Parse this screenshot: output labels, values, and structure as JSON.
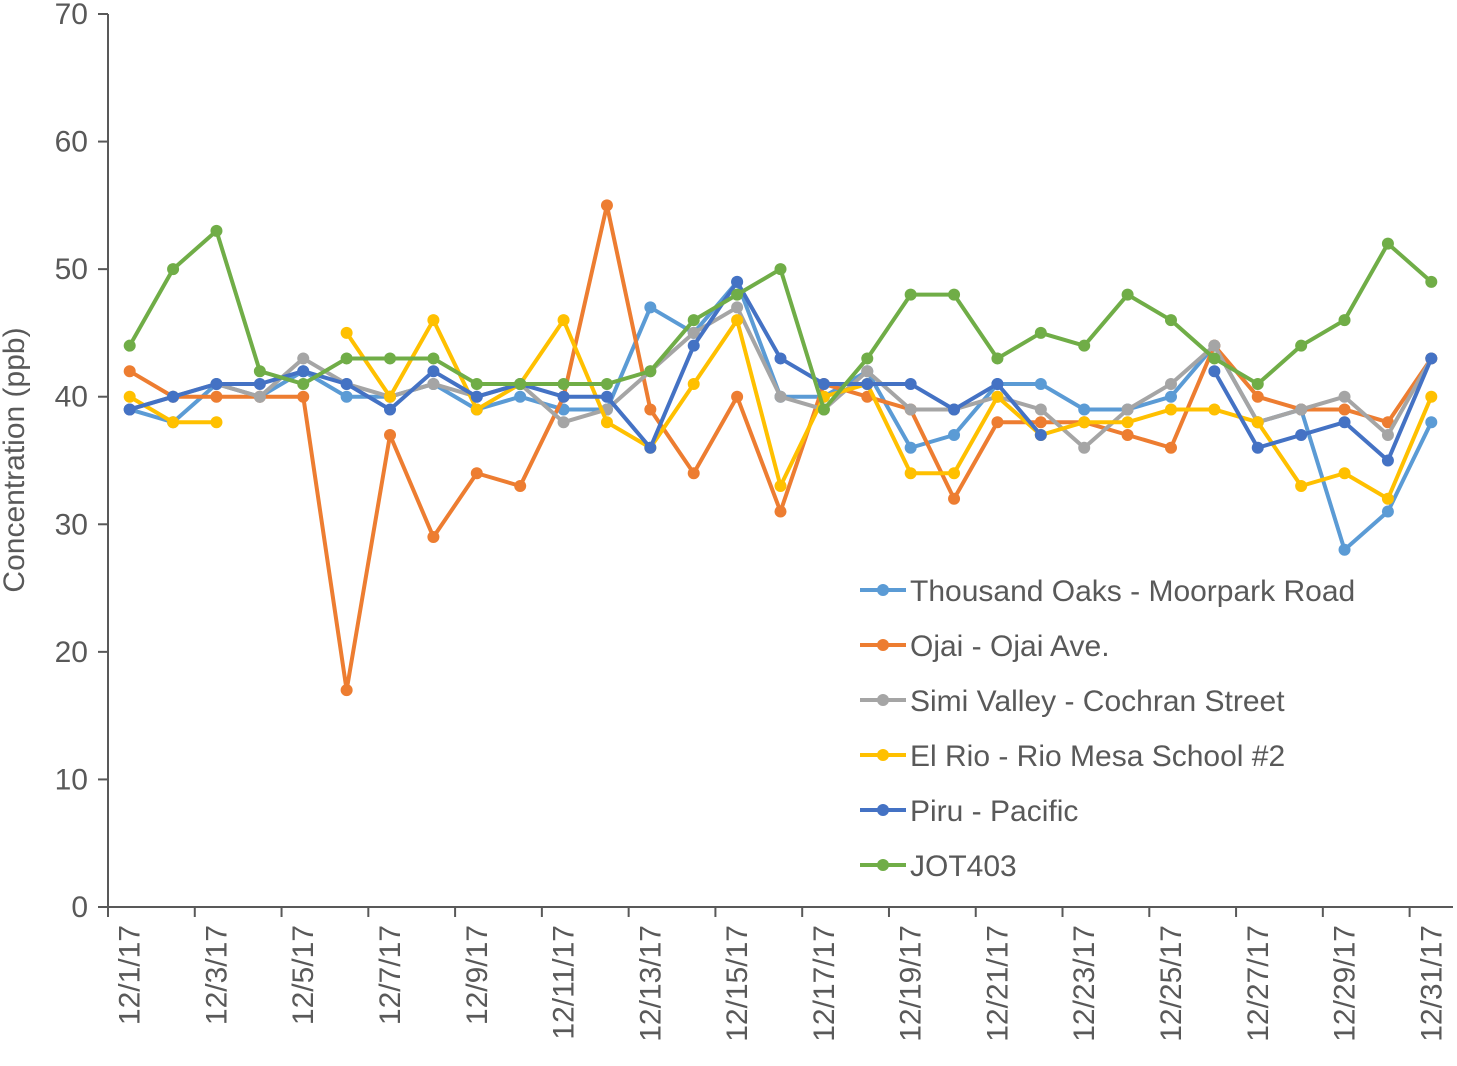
{
  "chart_data": {
    "type": "line",
    "title": "",
    "xlabel": "",
    "ylabel": "Concentration (ppb)",
    "ylim": [
      0,
      70
    ],
    "yticks": [
      0,
      10,
      20,
      30,
      40,
      50,
      60,
      70
    ],
    "legend_position": "right-center",
    "grid": false,
    "x": [
      "12/1/17",
      "12/2/17",
      "12/3/17",
      "12/4/17",
      "12/5/17",
      "12/6/17",
      "12/7/17",
      "12/8/17",
      "12/9/17",
      "12/10/17",
      "12/11/17",
      "12/12/17",
      "12/13/17",
      "12/14/17",
      "12/15/17",
      "12/16/17",
      "12/17/17",
      "12/18/17",
      "12/19/17",
      "12/20/17",
      "12/21/17",
      "12/22/17",
      "12/23/17",
      "12/24/17",
      "12/25/17",
      "12/26/17",
      "12/27/17",
      "12/28/17",
      "12/29/17",
      "12/30/17",
      "12/31/17"
    ],
    "xtick_labels": [
      "12/1/17",
      "12/3/17",
      "12/5/17",
      "12/7/17",
      "12/9/17",
      "12/11/17",
      "12/13/17",
      "12/15/17",
      "12/17/17",
      "12/19/17",
      "12/21/17",
      "12/23/17",
      "12/25/17",
      "12/27/17",
      "12/29/17",
      "12/31/17"
    ],
    "series": [
      {
        "name": "Thousand Oaks - Moorpark Road",
        "color": "#5B9BD5",
        "values": [
          39,
          38,
          41,
          40,
          42,
          40,
          40,
          41,
          39,
          40,
          39,
          39,
          47,
          45,
          49,
          40,
          40,
          42,
          36,
          37,
          41,
          41,
          39,
          39,
          40,
          44,
          38,
          39,
          28,
          31,
          38
        ]
      },
      {
        "name": "Ojai - Ojai Ave.",
        "color": "#ED7D31",
        "values": [
          42,
          40,
          40,
          40,
          40,
          17,
          37,
          29,
          34,
          33,
          40,
          55,
          39,
          34,
          40,
          31,
          41,
          40,
          39,
          32,
          38,
          38,
          38,
          37,
          36,
          44,
          40,
          39,
          39,
          38,
          43
        ]
      },
      {
        "name": "Simi Valley - Cochran Street",
        "color": "#A5A5A5",
        "values": [
          39,
          40,
          41,
          40,
          43,
          41,
          40,
          41,
          40,
          41,
          38,
          39,
          42,
          45,
          47,
          40,
          39,
          42,
          39,
          39,
          40,
          39,
          36,
          39,
          41,
          44,
          38,
          39,
          40,
          37,
          43
        ]
      },
      {
        "name": "El Rio - Rio Mesa School #2",
        "color": "#FFC000",
        "values": [
          40,
          38,
          38,
          null,
          null,
          45,
          40,
          46,
          39,
          41,
          46,
          38,
          36,
          41,
          46,
          33,
          40,
          41,
          34,
          34,
          40,
          37,
          38,
          38,
          39,
          39,
          38,
          33,
          34,
          32,
          40
        ]
      },
      {
        "name": "Piru - Pacific",
        "color": "#4472C4",
        "values": [
          39,
          40,
          41,
          41,
          42,
          41,
          39,
          42,
          40,
          41,
          40,
          40,
          36,
          44,
          49,
          43,
          41,
          41,
          41,
          39,
          41,
          37,
          null,
          null,
          null,
          42,
          36,
          37,
          38,
          35,
          43
        ]
      },
      {
        "name": "JOT403",
        "color": "#70AD47",
        "values": [
          44,
          50,
          53,
          42,
          41,
          43,
          43,
          43,
          41,
          41,
          41,
          41,
          42,
          46,
          48,
          50,
          39,
          43,
          48,
          48,
          43,
          45,
          44,
          48,
          46,
          43,
          41,
          44,
          46,
          52,
          49
        ]
      }
    ]
  }
}
